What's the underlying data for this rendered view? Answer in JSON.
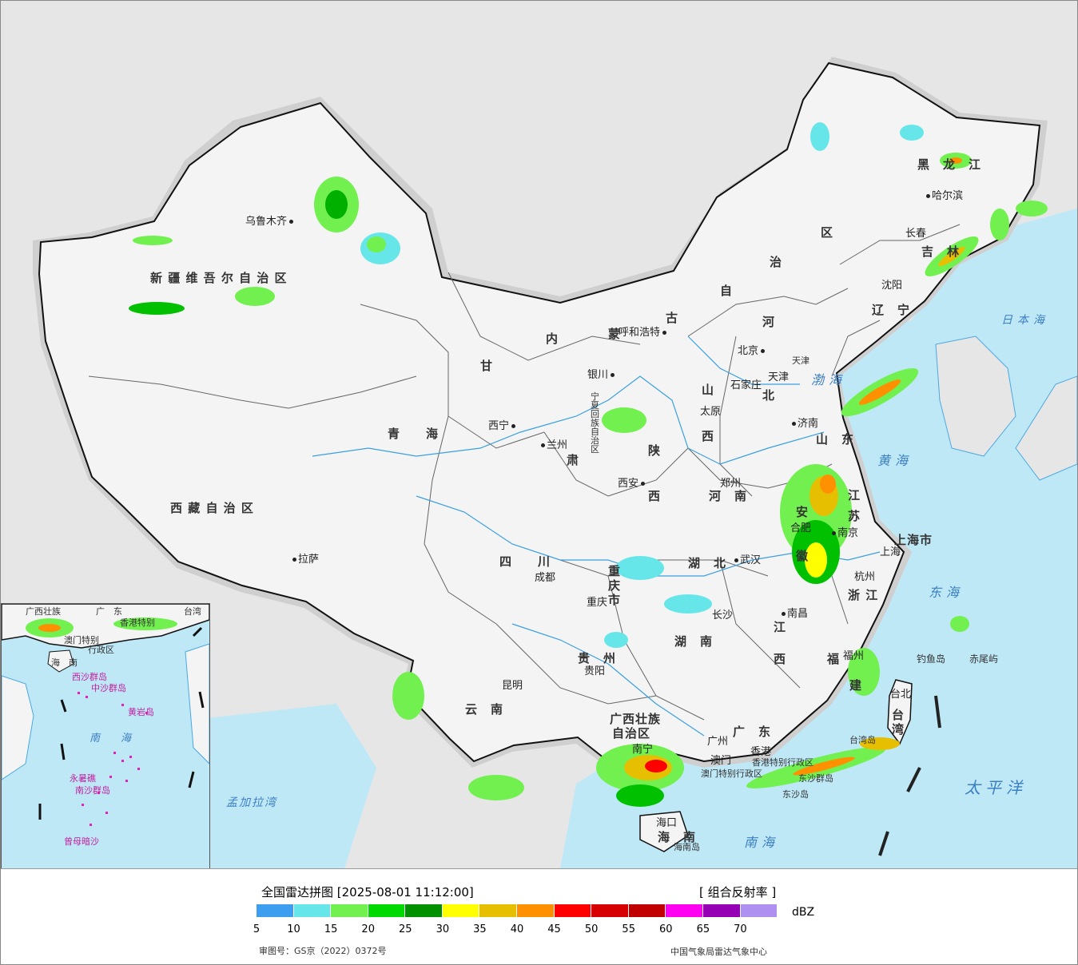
{
  "map": {
    "provinces": [
      {
        "id": "xinjiang",
        "label": "新 疆 维 吾 尔 自 治 区"
      },
      {
        "id": "xizang",
        "label": "西 藏 自 治 区"
      },
      {
        "id": "qinghai",
        "label": "青　　海"
      },
      {
        "id": "gansu",
        "label": "甘"
      },
      {
        "id": "neimenggu-1",
        "label": "内"
      },
      {
        "id": "neimenggu-2",
        "label": "蒙"
      },
      {
        "id": "neimenggu-3",
        "label": "古"
      },
      {
        "id": "neimenggu-4",
        "label": "自"
      },
      {
        "id": "neimenggu-5",
        "label": "治"
      },
      {
        "id": "neimenggu-6",
        "label": "区"
      },
      {
        "id": "heilongjiang",
        "label": "黑　龙　江"
      },
      {
        "id": "jilin",
        "label": "吉　林"
      },
      {
        "id": "liaoning",
        "label": "辽　宁"
      },
      {
        "id": "hebei-1",
        "label": "河"
      },
      {
        "id": "hebei-2",
        "label": "北"
      },
      {
        "id": "shanxi-1",
        "label": "山"
      },
      {
        "id": "shanxi-2",
        "label": "西"
      },
      {
        "id": "shandong",
        "label": "山　东"
      },
      {
        "id": "shaanxi-1",
        "label": "陕"
      },
      {
        "id": "shaanxi-2",
        "label": "西"
      },
      {
        "id": "henan",
        "label": "河　南"
      },
      {
        "id": "jiangsu-1",
        "label": "江"
      },
      {
        "id": "jiangsu-2",
        "label": "苏"
      },
      {
        "id": "anhui-1",
        "label": "安"
      },
      {
        "id": "anhui-2",
        "label": "徽"
      },
      {
        "id": "shanghai",
        "label": "上海市"
      },
      {
        "id": "zhejiang",
        "label": "浙 江"
      },
      {
        "id": "sichuan",
        "label": "四　　川"
      },
      {
        "id": "chongqing",
        "label": "重 庆 市"
      },
      {
        "id": "hubei",
        "label": "湖　北"
      },
      {
        "id": "hunan",
        "label": "湖　南"
      },
      {
        "id": "jiangxi-1",
        "label": "江"
      },
      {
        "id": "jiangxi-2",
        "label": "西"
      },
      {
        "id": "fujian-1",
        "label": "福"
      },
      {
        "id": "fujian-2",
        "label": "建"
      },
      {
        "id": "guizhou",
        "label": "贵　州"
      },
      {
        "id": "yunnan",
        "label": "云　南"
      },
      {
        "id": "guangxi-1",
        "label": "广西壮族"
      },
      {
        "id": "guangxi-2",
        "label": "自治区"
      },
      {
        "id": "guangdong",
        "label": "广　东"
      },
      {
        "id": "hainan",
        "label": "海　南"
      },
      {
        "id": "taiwan",
        "label": "台 湾"
      },
      {
        "id": "ningxia",
        "label": "宁夏回族自治区"
      },
      {
        "id": "tianjin",
        "label": "天津"
      },
      {
        "id": "gansu-2",
        "label": "肃"
      },
      {
        "id": "xianggang",
        "label": "香港特别行政区"
      },
      {
        "id": "aomen",
        "label": "澳门特别行政区"
      }
    ],
    "cities": [
      {
        "id": "urumqi",
        "label": "乌鲁木齐"
      },
      {
        "id": "lhasa",
        "label": "拉萨"
      },
      {
        "id": "xining",
        "label": "西宁"
      },
      {
        "id": "lanzhou",
        "label": "兰州"
      },
      {
        "id": "yinchuan",
        "label": "银川"
      },
      {
        "id": "hohhot",
        "label": "呼和浩特"
      },
      {
        "id": "beijing",
        "label": "北京"
      },
      {
        "id": "tianjin-city",
        "label": "天津"
      },
      {
        "id": "shijiazhuang",
        "label": "石家庄"
      },
      {
        "id": "taiyuan",
        "label": "太原"
      },
      {
        "id": "jinan",
        "label": "济南"
      },
      {
        "id": "zhengzhou",
        "label": "郑州"
      },
      {
        "id": "xian",
        "label": "西安"
      },
      {
        "id": "harbin",
        "label": "哈尔滨"
      },
      {
        "id": "changchun",
        "label": "长春"
      },
      {
        "id": "shenyang",
        "label": "沈阳"
      },
      {
        "id": "hefei",
        "label": "合肥"
      },
      {
        "id": "nanjing",
        "label": "南京"
      },
      {
        "id": "shanghai-city",
        "label": "上海"
      },
      {
        "id": "hangzhou",
        "label": "杭州"
      },
      {
        "id": "wuhan",
        "label": "武汉"
      },
      {
        "id": "chengdu",
        "label": "成都"
      },
      {
        "id": "chongqing-city",
        "label": "重庆"
      },
      {
        "id": "changsha",
        "label": "长沙"
      },
      {
        "id": "nanchang",
        "label": "南昌"
      },
      {
        "id": "fuzhou",
        "label": "福州"
      },
      {
        "id": "guiyang",
        "label": "贵阳"
      },
      {
        "id": "kunming",
        "label": "昆明"
      },
      {
        "id": "nanning",
        "label": "南宁"
      },
      {
        "id": "guangzhou",
        "label": "广州"
      },
      {
        "id": "macau",
        "label": "澳门"
      },
      {
        "id": "hongkong",
        "label": "香港"
      },
      {
        "id": "haikou",
        "label": "海口"
      },
      {
        "id": "taipei",
        "label": "台北"
      }
    ],
    "seas": [
      {
        "id": "bohai",
        "label": "渤海"
      },
      {
        "id": "huanghai",
        "label": "黄海"
      },
      {
        "id": "donghai",
        "label": "东海"
      },
      {
        "id": "nanhai",
        "label": "南海"
      },
      {
        "id": "taipingyang",
        "label": "太平洋"
      },
      {
        "id": "ribenhai",
        "label": "日本海"
      },
      {
        "id": "mengjialawan",
        "label": "孟加拉湾"
      }
    ],
    "islands": [
      {
        "id": "diaoyudao",
        "label": "钓鱼岛"
      },
      {
        "id": "chiweiyu",
        "label": "赤尾屿"
      },
      {
        "id": "taiwandao",
        "label": "台湾岛"
      },
      {
        "id": "dongshaqundao",
        "label": "东沙群岛"
      },
      {
        "id": "dongshadao",
        "label": "东沙岛"
      },
      {
        "id": "hainandao",
        "label": "海南岛"
      }
    ],
    "inset": {
      "labels": [
        {
          "id": "inset-guangxi",
          "label": "广西壮族"
        },
        {
          "id": "inset-guangdong",
          "label": "广　东"
        },
        {
          "id": "inset-hongkong",
          "label": "香港特别"
        },
        {
          "id": "inset-taiwan",
          "label": "台湾"
        },
        {
          "id": "inset-aomen",
          "label": "澳门特别"
        },
        {
          "id": "inset-xingzhengqu",
          "label": "行政区"
        },
        {
          "id": "inset-hainan",
          "label": "海　南"
        },
        {
          "id": "inset-xisha",
          "label": "西沙群岛"
        },
        {
          "id": "inset-zhongsha",
          "label": "中沙群岛"
        },
        {
          "id": "inset-huangyan",
          "label": "黄岩岛"
        },
        {
          "id": "inset-nanhai",
          "label": "南　　海"
        },
        {
          "id": "inset-yongshu",
          "label": "永暑礁"
        },
        {
          "id": "inset-nansha",
          "label": "南沙群岛"
        },
        {
          "id": "inset-zengmu",
          "label": "曾母暗沙"
        }
      ]
    }
  },
  "legend": {
    "title": "全国雷达拼图 [2025-08-01 11:12:00]",
    "product": "[ 组合反射率 ]",
    "unit": "dBZ",
    "ticks": [
      "5",
      "10",
      "15",
      "20",
      "25",
      "30",
      "35",
      "40",
      "45",
      "50",
      "55",
      "60",
      "65",
      "70"
    ],
    "colors": [
      "#3d9ef0",
      "#66e6e8",
      "#72f050",
      "#00d900",
      "#009000",
      "#ffff00",
      "#e6c000",
      "#ff9000",
      "#ff0000",
      "#d60000",
      "#c00000",
      "#ff00f0",
      "#9600b4",
      "#ad90f0"
    ],
    "review_number": "审图号：GS京（2022）0372号",
    "producer": "中国气象局雷达气象中心"
  }
}
